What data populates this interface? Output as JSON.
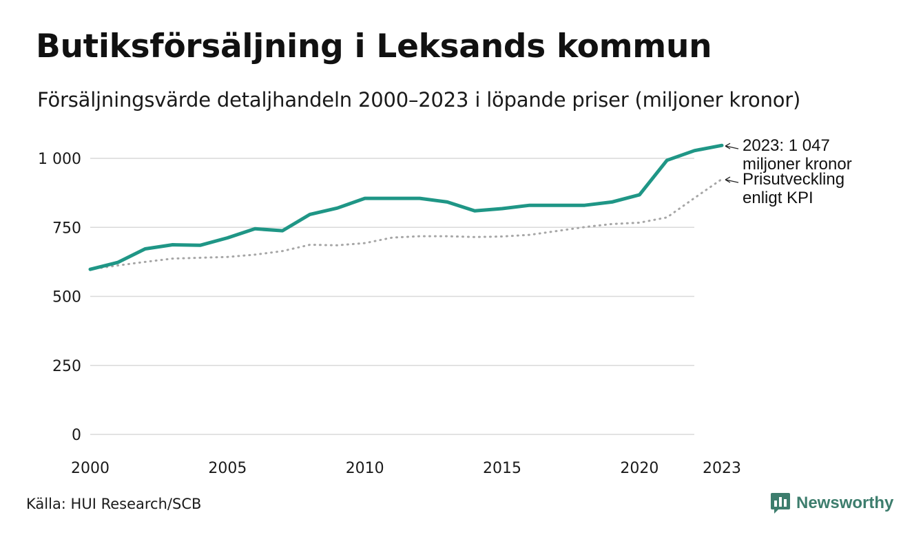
{
  "title": "Butiksförsäljning i Leksands kommun",
  "subtitle": "Försäljningsvärde detaljhandeln 2000–2023 i löpande priser (miljoner kronor)",
  "source": "Källa: HUI Research/SCB",
  "brand": "Newsworthy",
  "colors": {
    "sales": "#1f9686",
    "kpi": "#a6a6a6",
    "grid": "#d9d9d9",
    "brand": "#3d7d6d"
  },
  "chart_data": {
    "type": "line",
    "title": "Butiksförsäljning i Leksands kommun",
    "xlabel": "",
    "ylabel": "",
    "x": [
      2000,
      2001,
      2002,
      2003,
      2004,
      2005,
      2006,
      2007,
      2008,
      2009,
      2010,
      2011,
      2012,
      2013,
      2014,
      2015,
      2016,
      2017,
      2018,
      2019,
      2020,
      2021,
      2022,
      2023
    ],
    "xlim": [
      2000,
      2023
    ],
    "ylim": [
      0,
      1000
    ],
    "x_ticks": [
      2000,
      2005,
      2010,
      2015,
      2020,
      2023
    ],
    "y_ticks": [
      0,
      250,
      500,
      750,
      1000
    ],
    "y_tick_labels": [
      "0",
      "250",
      "500",
      "750",
      "1 000"
    ],
    "grid": true,
    "series": [
      {
        "name": "Försäljningsvärde",
        "style": "solid",
        "values": [
          598,
          623,
          672,
          687,
          685,
          712,
          745,
          738,
          797,
          820,
          855,
          855,
          855,
          842,
          810,
          818,
          830,
          830,
          830,
          842,
          868,
          993,
          1028,
          1047
        ]
      },
      {
        "name": "Prisutveckling enligt KPI",
        "style": "dotted",
        "values": [
          598,
          612,
          625,
          637,
          640,
          643,
          651,
          664,
          687,
          685,
          693,
          713,
          718,
          718,
          715,
          717,
          723,
          737,
          751,
          762,
          767,
          786,
          856,
          925
        ]
      }
    ],
    "annotations": [
      {
        "series": 0,
        "lines": [
          "2023: 1 047",
          "miljoner kronor"
        ]
      },
      {
        "series": 1,
        "lines": [
          "Prisutveckling",
          "enligt KPI"
        ]
      }
    ]
  }
}
